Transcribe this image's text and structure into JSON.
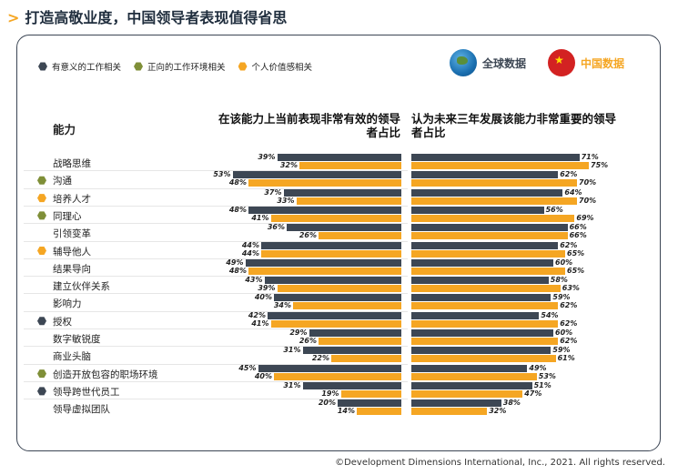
{
  "page": {
    "title": "打造高敬业度，中国领导者表现值得省思",
    "footer": "©Development Dimensions International, Inc., 2021. All rights reserved."
  },
  "legend": {
    "items": [
      {
        "label": "有意义的工作相关",
        "color": "#3d4754"
      },
      {
        "label": "正向的工作环境相关",
        "color": "#7f8f38"
      },
      {
        "label": "个人价值感相关",
        "color": "#f5a623"
      }
    ]
  },
  "badges": {
    "global": "全球数据",
    "china": "中国数据"
  },
  "colors": {
    "global": "#3d4754",
    "china": "#f5a623"
  },
  "chart_data": {
    "type": "bar",
    "row_header": "能力",
    "left_title": "在该能力上当前表现非常有效的领导者占比",
    "right_title": "认为未来三年发展该能力非常重要的领导者占比",
    "categories": [
      "战略思维",
      "沟通",
      "培养人才",
      "同理心",
      "引领变革",
      "辅导他人",
      "结果导向",
      "建立伙伴关系",
      "影响力",
      "授权",
      "数字敏锐度",
      "商业头脑",
      "创造开放包容的职场环境",
      "领导跨世代员工",
      "领导虚拟团队"
    ],
    "category_groups": [
      null,
      "positive",
      "personal",
      "positive",
      null,
      "personal",
      null,
      null,
      null,
      "meaningful",
      null,
      null,
      "positive",
      "meaningful",
      null
    ],
    "series": [
      {
        "name": "全球数据",
        "left": [
          39,
          53,
          37,
          48,
          36,
          44,
          49,
          43,
          40,
          42,
          29,
          31,
          45,
          31,
          20
        ],
        "right": [
          71,
          62,
          64,
          56,
          66,
          62,
          60,
          58,
          59,
          54,
          60,
          59,
          49,
          51,
          38
        ]
      },
      {
        "name": "中国数据",
        "left": [
          32,
          48,
          33,
          41,
          26,
          44,
          48,
          39,
          34,
          41,
          26,
          22,
          40,
          19,
          14
        ],
        "right": [
          75,
          70,
          70,
          69,
          66,
          65,
          65,
          63,
          62,
          62,
          62,
          61,
          53,
          47,
          32
        ]
      }
    ],
    "unit": "%"
  }
}
